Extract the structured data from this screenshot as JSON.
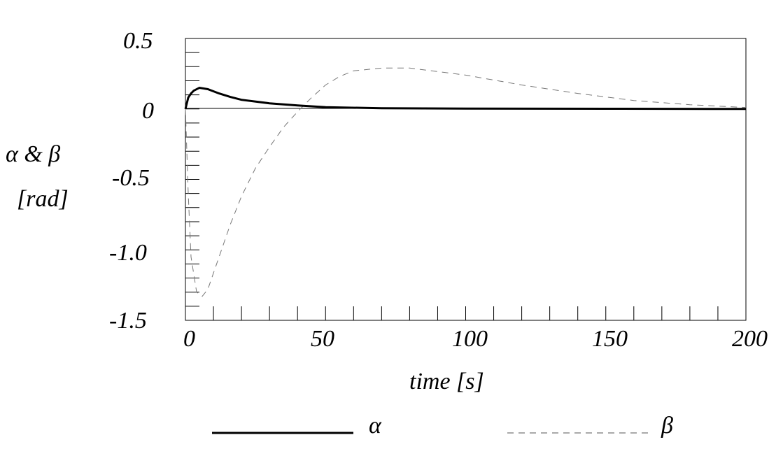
{
  "chart_data": {
    "type": "line",
    "title": "",
    "xlabel": "time [s]",
    "ylabel": "α & β",
    "ylabel_unit": "[rad]",
    "xlim": [
      0,
      200
    ],
    "ylim": [
      -1.5,
      0.5
    ],
    "xticks": [
      "0",
      "50",
      "100",
      "150",
      "200"
    ],
    "yticks": [
      "0.5",
      "0",
      "-0.5",
      "-1.0",
      "-1.5"
    ],
    "grid": false,
    "legend_position": "bottom",
    "series": [
      {
        "name": "α",
        "style": "solid-thick",
        "x": [
          0,
          1,
          2,
          3,
          5,
          8,
          12,
          16,
          20,
          30,
          40,
          50,
          70,
          100,
          150,
          200
        ],
        "values": [
          0,
          0.08,
          0.11,
          0.13,
          0.15,
          0.14,
          0.11,
          0.085,
          0.065,
          0.04,
          0.025,
          0.012,
          0.005,
          0.002,
          0.001,
          0
        ]
      },
      {
        "name": "β",
        "style": "dashed-thin",
        "x": [
          0,
          1,
          2,
          4,
          6,
          8,
          12,
          16,
          20,
          25,
          30,
          35,
          40,
          45,
          50,
          55,
          60,
          70,
          80,
          100,
          120,
          140,
          160,
          180,
          200
        ],
        "values": [
          0,
          -0.6,
          -1.05,
          -1.3,
          -1.33,
          -1.28,
          -1.05,
          -0.82,
          -0.62,
          -0.42,
          -0.27,
          -0.13,
          -0.02,
          0.08,
          0.17,
          0.23,
          0.27,
          0.29,
          0.29,
          0.24,
          0.17,
          0.11,
          0.06,
          0.03,
          0.01
        ]
      }
    ]
  },
  "legend": {
    "alpha_label": "α",
    "beta_label": "β"
  }
}
